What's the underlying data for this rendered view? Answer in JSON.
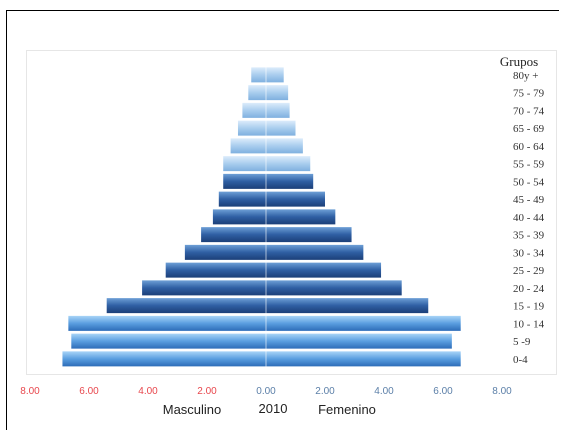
{
  "chart_data": {
    "type": "bar",
    "orientation": "horizontal-population-pyramid",
    "year_label": "2010",
    "left_label": "Masculino",
    "right_label": "Femenino",
    "groups_header": "Grupos",
    "categories": [
      "0-4",
      "5-9",
      "10-14",
      "15-19",
      "20-24",
      "25-29",
      "30-34",
      "35-39",
      "40-44",
      "45-49",
      "50-54",
      "55-59",
      "60-64",
      "65-69",
      "70-74",
      "75-79",
      "80y +"
    ],
    "category_labels": [
      "0-4",
      "5 -9",
      "10 - 14",
      "15 - 19",
      "20 - 24",
      "25 - 29",
      "30 - 34",
      "35 - 39",
      "40 - 44",
      "45 - 49",
      "50 - 54",
      "55 - 59",
      "60 - 64",
      "65 - 69",
      "70 - 74",
      "75 - 79",
      "80y +"
    ],
    "series": [
      {
        "name": "Masculino",
        "values": [
          6.9,
          6.6,
          6.7,
          5.4,
          4.2,
          3.4,
          2.75,
          2.2,
          1.8,
          1.6,
          1.45,
          1.45,
          1.2,
          0.95,
          0.8,
          0.6,
          0.5
        ]
      },
      {
        "name": "Femenino",
        "values": [
          6.6,
          6.3,
          6.6,
          5.5,
          4.6,
          3.9,
          3.3,
          2.9,
          2.35,
          2.0,
          1.6,
          1.5,
          1.25,
          1.0,
          0.8,
          0.75,
          0.6
        ]
      }
    ],
    "x_ticks_left": [
      "8.00",
      "6.00",
      "4.00",
      "2.00"
    ],
    "x_ticks_right": [
      "0.00",
      "2.00",
      "4.00",
      "6.00",
      "8.00"
    ],
    "xlim": [
      -8,
      8
    ],
    "colors": {
      "bar_light": "#9cc8f0",
      "bar_mid": "#4f8fd4",
      "bar_dark": "#1f4f8f",
      "tick_left": "#e8474d",
      "tick_right": "#5b7fa8"
    }
  }
}
